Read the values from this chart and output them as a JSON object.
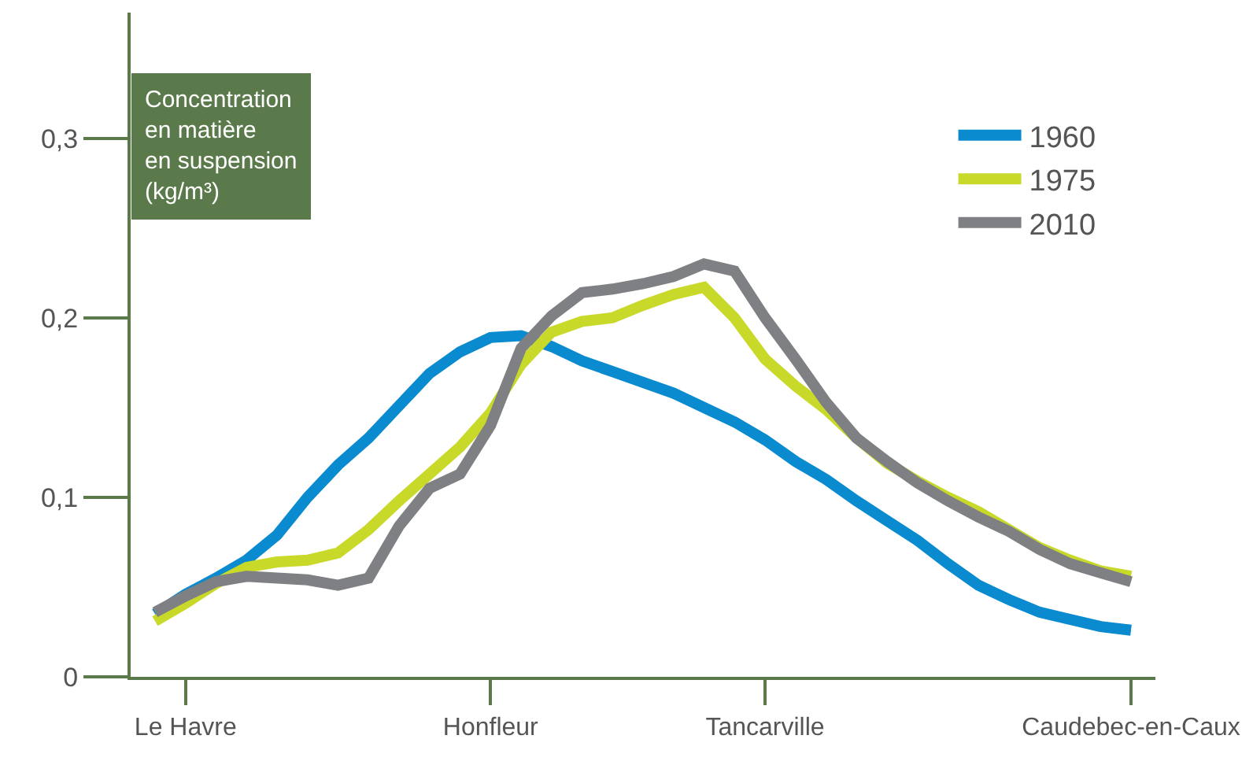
{
  "chart_data": {
    "type": "line",
    "ylabel": "Concentration\nen matière\nen suspension\n(kg/m³)",
    "categories": [
      null,
      "Le Havre",
      null,
      null,
      null,
      null,
      null,
      null,
      null,
      null,
      null,
      "Honfleur",
      null,
      null,
      null,
      null,
      null,
      null,
      null,
      null,
      "Tancarville",
      null,
      null,
      null,
      null,
      null,
      null,
      null,
      null,
      null,
      null,
      null,
      "Caudebec-en-Caux"
    ],
    "ylim": [
      0,
      0.37
    ],
    "yticks": [
      {
        "value": 0,
        "label": "0"
      },
      {
        "value": 0.1,
        "label": "0,1"
      },
      {
        "value": 0.2,
        "label": "0,2"
      },
      {
        "value": 0.3,
        "label": "0,3"
      }
    ],
    "legend": "right",
    "marker": "none",
    "line_style": "solid",
    "series": [
      {
        "name": "1960",
        "color": "#0a8acf",
        "values": [
          0.035,
          0.046,
          0.055,
          0.065,
          0.079,
          0.1,
          0.118,
          0.133,
          0.151,
          0.169,
          0.181,
          0.189,
          0.19,
          0.184,
          0.176,
          0.17,
          0.164,
          0.158,
          0.15,
          0.142,
          0.132,
          0.12,
          0.11,
          0.098,
          0.087,
          0.076,
          0.063,
          0.051,
          0.043,
          0.036,
          0.032,
          0.028,
          0.026
        ]
      },
      {
        "name": "1975",
        "color": "#c9d92a",
        "values": [
          0.031,
          0.041,
          0.052,
          0.061,
          0.064,
          0.065,
          0.069,
          0.082,
          0.098,
          0.113,
          0.128,
          0.147,
          0.174,
          0.192,
          0.198,
          0.2,
          0.207,
          0.213,
          0.217,
          0.2,
          0.177,
          0.162,
          0.149,
          0.133,
          0.119,
          0.109,
          0.1,
          0.092,
          0.082,
          0.072,
          0.065,
          0.059,
          0.056
        ]
      },
      {
        "name": "2010",
        "color": "#7f8083",
        "values": [
          0.036,
          0.045,
          0.053,
          0.056,
          0.055,
          0.054,
          0.051,
          0.055,
          0.084,
          0.105,
          0.113,
          0.14,
          0.183,
          0.201,
          0.214,
          0.216,
          0.219,
          0.223,
          0.23,
          0.226,
          0.2,
          0.177,
          0.153,
          0.133,
          0.12,
          0.108,
          0.098,
          0.089,
          0.081,
          0.071,
          0.063,
          0.058,
          0.053
        ]
      }
    ]
  }
}
